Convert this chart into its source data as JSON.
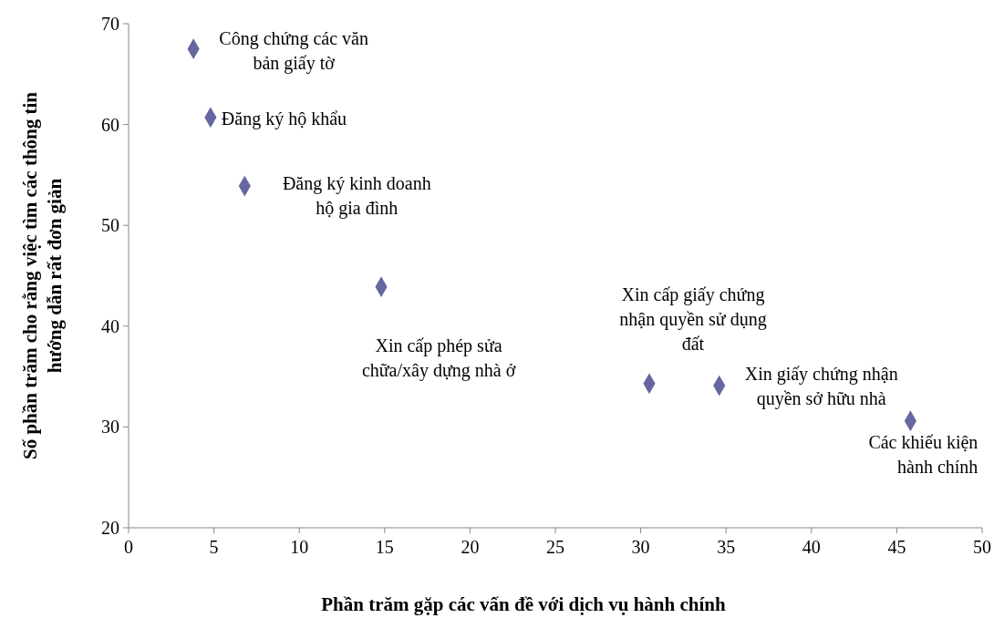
{
  "chart_data": {
    "type": "scatter",
    "xlabel": "Phần trăm gặp các vấn đề với dịch vụ hành chính",
    "ylabel": "Số phần trăm cho rằng việc tìm các thông tin\nhướng dẫn rất đơn giản",
    "x": [
      3.8,
      4.8,
      6.8,
      14.8,
      30.5,
      34.6,
      45.8
    ],
    "series": [
      {
        "color": "#6666a0",
        "values": [
          67.5,
          60.7,
          53.9,
          43.9,
          34.3,
          34.1,
          30.6
        ]
      }
    ],
    "xlim": [
      0,
      50
    ],
    "xticks": [
      0,
      5,
      10,
      15,
      20,
      25,
      30,
      35,
      40,
      45,
      50
    ],
    "ylim": [
      20,
      70
    ],
    "yticks": [
      20,
      30,
      40,
      50,
      60,
      70
    ],
    "grid": false,
    "marker": "diamond",
    "annotations": [
      {
        "text": "Công chứng các văn\nbản giấy tờ",
        "x": 3.8,
        "y": 67.5
      },
      {
        "text": "Đăng ký hộ khẩu",
        "x": 4.8,
        "y": 60.7
      },
      {
        "text": "Đăng ký kinh doanh\nhộ gia đình",
        "x": 6.8,
        "y": 53.9
      },
      {
        "text": "Xin cấp phép sửa\nchữa/xây dựng nhà ở",
        "x": 14.8,
        "y": 43.9
      },
      {
        "text": "Xin cấp giấy chứng\nnhận quyền sử dụng\nđất",
        "x": 30.5,
        "y": 34.3
      },
      {
        "text": "Xin giấy chứng nhận\nquyền sở hữu nhà",
        "x": 34.6,
        "y": 34.1
      },
      {
        "text": "Các khiếu kiện\nhành chính",
        "x": 45.8,
        "y": 30.6
      }
    ]
  }
}
